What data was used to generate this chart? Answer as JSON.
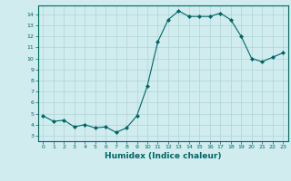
{
  "x": [
    0,
    1,
    2,
    3,
    4,
    5,
    6,
    7,
    8,
    9,
    10,
    11,
    12,
    13,
    14,
    15,
    16,
    17,
    18,
    19,
    20,
    21,
    22,
    23
  ],
  "y": [
    4.8,
    4.3,
    4.4,
    3.8,
    4.0,
    3.7,
    3.8,
    3.3,
    3.7,
    4.8,
    7.5,
    11.5,
    13.5,
    14.3,
    13.8,
    13.8,
    13.8,
    14.1,
    13.5,
    12.0,
    10.0,
    9.7,
    10.1,
    10.5
  ],
  "xlabel": "Humidex (Indice chaleur)",
  "xlim": [
    -0.5,
    23.5
  ],
  "ylim": [
    2.5,
    14.8
  ],
  "yticks": [
    3,
    4,
    5,
    6,
    7,
    8,
    9,
    10,
    11,
    12,
    13,
    14
  ],
  "xticks": [
    0,
    1,
    2,
    3,
    4,
    5,
    6,
    7,
    8,
    9,
    10,
    11,
    12,
    13,
    14,
    15,
    16,
    17,
    18,
    19,
    20,
    21,
    22,
    23
  ],
  "line_color": "#006666",
  "marker_color": "#006666",
  "bg_color": "#d0ecee",
  "grid_color": "#b0d4d6",
  "xlabel_color": "#006666",
  "tick_color": "#006666",
  "spine_color": "#006666"
}
